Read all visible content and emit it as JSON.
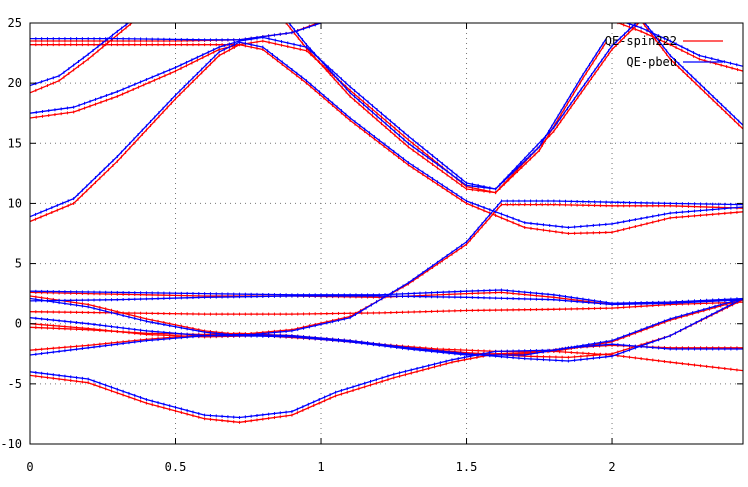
{
  "chart_data": {
    "type": "line",
    "xlim": [
      0,
      2.45
    ],
    "ylim": [
      -10,
      25
    ],
    "grid": true,
    "legend_position": "top-right",
    "x_ticks": [
      "0",
      "0.5",
      "1",
      "1.5",
      "2"
    ],
    "y_ticks": [
      "-10",
      "-5",
      "0",
      "5",
      "10",
      "15",
      "20",
      "25"
    ],
    "colors": {
      "red": "#ff0000",
      "blue": "#0000ff"
    },
    "series": [
      {
        "name": "QE-spin222",
        "color": "#ff0000",
        "bands": [
          {
            "x": [
              0,
              0.2,
              0.4,
              0.6,
              0.72,
              0.9,
              1.05
            ],
            "y": [
              -4.3,
              -4.9,
              -6.6,
              -7.9,
              -8.2,
              -7.6,
              -6.0
            ]
          },
          {
            "x": [
              1.05,
              1.25,
              1.45,
              1.6,
              1.8,
              2.0,
              2.2,
              2.45
            ],
            "y": [
              -6.0,
              -4.5,
              -3.2,
              -2.5,
              -2.3,
              -1.5,
              0.3,
              2.0
            ]
          },
          {
            "x": [
              0,
              0.2,
              0.4,
              0.6,
              0.72,
              0.9,
              1.1,
              1.3,
              1.5,
              1.7,
              1.85,
              2.0,
              2.2,
              2.45
            ],
            "y": [
              -2.2,
              -1.8,
              -1.3,
              -0.9,
              -0.8,
              -1.0,
              -1.5,
              -2.0,
              -2.4,
              -2.7,
              -2.8,
              -2.5,
              -1.0,
              2.0
            ]
          },
          {
            "x": [
              0,
              0.2,
              0.4,
              0.6,
              0.72,
              0.9,
              1.1,
              1.3,
              1.5,
              1.7,
              1.85,
              2.0,
              2.2,
              2.45
            ],
            "y": [
              -0.3,
              -0.5,
              -0.8,
              -0.9,
              -0.9,
              -1.0,
              -1.4,
              -2.0,
              -2.5,
              -2.5,
              -2.0,
              -1.8,
              -2.0,
              -2.0
            ]
          },
          {
            "x": [
              0,
              0.2,
              0.4,
              0.6,
              0.8,
              1.0,
              1.2,
              1.4,
              1.6,
              1.8,
              2.0,
              2.2,
              2.45
            ],
            "y": [
              0.0,
              -0.4,
              -0.9,
              -1.1,
              -1.0,
              -1.3,
              -1.7,
              -2.1,
              -2.3,
              -2.3,
              -2.6,
              -3.2,
              -3.9
            ]
          },
          {
            "x": [
              0,
              0.2,
              0.4,
              0.6,
              0.72,
              0.9,
              1.1,
              1.3,
              1.5,
              1.62,
              1.8,
              2.0,
              2.2,
              2.45
            ],
            "y": [
              2.3,
              1.6,
              0.4,
              -0.6,
              -0.9,
              -0.5,
              0.6,
              3.3,
              6.6,
              9.9,
              9.9,
              9.8,
              9.8,
              9.6
            ]
          },
          {
            "x": [
              0,
              0.3,
              0.6,
              0.9,
              1.2,
              1.5,
              1.8,
              2.0,
              2.2,
              2.45
            ],
            "y": [
              1.0,
              0.9,
              0.8,
              0.8,
              0.9,
              1.1,
              1.2,
              1.3,
              1.6,
              1.8
            ]
          },
          {
            "x": [
              0,
              0.2,
              0.4,
              0.6,
              0.9,
              1.2,
              1.5,
              1.62,
              1.8,
              2.0,
              2.2,
              2.45
            ],
            "y": [
              2.6,
              2.5,
              2.4,
              2.3,
              2.3,
              2.2,
              2.5,
              2.6,
              2.2,
              1.6,
              1.8,
              2.0
            ]
          },
          {
            "x": [
              0,
              0.15,
              0.3,
              0.5,
              0.65,
              0.72,
              0.8,
              0.95,
              1.1,
              1.3,
              1.5,
              1.7,
              1.85,
              2.0,
              2.2,
              2.45
            ],
            "y": [
              8.5,
              10.0,
              13.5,
              18.7,
              22.3,
              23.2,
              22.8,
              20.0,
              16.9,
              13.2,
              10.0,
              8.0,
              7.5,
              7.6,
              8.8,
              9.3
            ]
          },
          {
            "x": [
              0,
              0.15,
              0.3,
              0.5,
              0.65,
              0.72,
              0.8,
              0.95,
              1.1,
              1.3,
              1.5,
              1.6,
              1.8,
              2.0,
              2.1,
              2.2,
              2.45
            ],
            "y": [
              17.1,
              17.6,
              18.9,
              21.0,
              22.8,
              23.2,
              23.5,
              22.7,
              19.4,
              15.3,
              11.4,
              10.9,
              16.0,
              22.8,
              25.2,
              22.0,
              16.2
            ]
          },
          {
            "x": [
              0,
              0.1,
              0.2,
              0.3,
              0.36
            ],
            "y": [
              19.2,
              20.2,
              22.0,
              24.0,
              25.2
            ]
          },
          {
            "x": [
              0.88,
              0.95,
              1.1,
              1.3,
              1.5,
              1.6,
              1.75,
              1.9,
              1.98
            ],
            "y": [
              25.0,
              22.9,
              18.9,
              14.7,
              11.2,
              10.9,
              14.4,
              20.4,
              23.4
            ]
          },
          {
            "x": [
              0,
              0.3,
              0.6,
              0.72
            ],
            "y": [
              23.2,
              23.2,
              23.2,
              23.2
            ]
          },
          {
            "x": [
              0,
              0.3,
              0.5,
              0.72,
              0.9,
              1.0
            ],
            "y": [
              23.5,
              23.5,
              23.5,
              23.6,
              24.2,
              25.1
            ]
          },
          {
            "x": [
              2.0,
              2.1,
              2.2,
              2.3,
              2.45
            ],
            "y": [
              25.2,
              24.3,
              23.2,
              22.0,
              21.0
            ]
          }
        ]
      },
      {
        "name": "QE-pbeu",
        "color": "#0000ff",
        "bands": [
          {
            "x": [
              0,
              0.2,
              0.4,
              0.6,
              0.72,
              0.9,
              1.05
            ],
            "y": [
              -4.0,
              -4.6,
              -6.3,
              -7.6,
              -7.8,
              -7.3,
              -5.7
            ]
          },
          {
            "x": [
              1.05,
              1.25,
              1.45,
              1.6,
              1.8,
              2.0,
              2.2,
              2.45
            ],
            "y": [
              -5.7,
              -4.2,
              -3.0,
              -2.3,
              -2.2,
              -1.4,
              0.4,
              2.1
            ]
          },
          {
            "x": [
              0,
              0.2,
              0.4,
              0.6,
              0.72,
              0.9,
              1.1,
              1.3,
              1.5,
              1.7,
              1.85,
              2.0,
              2.2,
              2.45
            ],
            "y": [
              -2.6,
              -2.0,
              -1.4,
              -1.0,
              -0.9,
              -1.0,
              -1.4,
              -2.0,
              -2.5,
              -2.9,
              -3.1,
              -2.7,
              -1.0,
              2.1
            ]
          },
          {
            "x": [
              0,
              0.2,
              0.4,
              0.6,
              0.72,
              0.9,
              1.1,
              1.3,
              1.5,
              1.7,
              1.85,
              2.0,
              2.2,
              2.45
            ],
            "y": [
              0.5,
              0.0,
              -0.6,
              -1.0,
              -1.0,
              -1.1,
              -1.5,
              -2.1,
              -2.6,
              -2.6,
              -2.0,
              -1.7,
              -2.1,
              -2.1
            ]
          },
          {
            "x": [
              0,
              0.2,
              0.4,
              0.6,
              0.72,
              0.9,
              1.1,
              1.3,
              1.5,
              1.62,
              1.8,
              2.0,
              2.2,
              2.45
            ],
            "y": [
              2.1,
              1.4,
              0.2,
              -0.7,
              -1.0,
              -0.6,
              0.5,
              3.4,
              6.8,
              10.2,
              10.2,
              10.1,
              10.0,
              9.9
            ]
          },
          {
            "x": [
              0,
              0.3,
              0.6,
              0.9,
              1.2,
              1.5,
              1.62,
              1.8,
              2.0,
              2.2,
              2.45
            ],
            "y": [
              2.7,
              2.6,
              2.5,
              2.4,
              2.4,
              2.7,
              2.8,
              2.4,
              1.7,
              1.8,
              2.1
            ]
          },
          {
            "x": [
              0,
              0.3,
              0.6,
              0.9,
              1.2,
              1.5,
              1.8,
              2.0,
              2.2,
              2.45
            ],
            "y": [
              1.9,
              2.0,
              2.2,
              2.3,
              2.3,
              2.2,
              2.0,
              1.6,
              1.7,
              2.0
            ]
          },
          {
            "x": [
              0,
              0.15,
              0.3,
              0.5,
              0.65,
              0.72,
              0.8,
              0.95,
              1.1,
              1.3,
              1.5,
              1.7,
              1.85,
              2.0,
              2.2,
              2.45
            ],
            "y": [
              8.9,
              10.4,
              13.9,
              19.0,
              22.6,
              23.4,
              23.0,
              20.2,
              17.1,
              13.4,
              10.2,
              8.4,
              8.0,
              8.3,
              9.2,
              9.7
            ]
          },
          {
            "x": [
              0,
              0.15,
              0.3,
              0.5,
              0.65,
              0.72,
              0.8,
              0.95,
              1.1,
              1.3,
              1.5,
              1.6,
              1.8,
              2.0,
              2.1,
              2.2,
              2.45
            ],
            "y": [
              17.5,
              18.0,
              19.3,
              21.3,
              23.0,
              23.5,
              23.8,
              23.0,
              19.7,
              15.6,
              11.7,
              11.2,
              16.3,
              23.1,
              25.4,
              22.3,
              16.5
            ]
          },
          {
            "x": [
              0,
              0.1,
              0.2,
              0.3,
              0.36
            ],
            "y": [
              19.8,
              20.6,
              22.4,
              24.3,
              25.4
            ]
          },
          {
            "x": [
              0.88,
              0.95,
              1.1,
              1.3,
              1.5,
              1.6,
              1.75,
              1.9,
              1.98
            ],
            "y": [
              25.3,
              23.2,
              19.2,
              15.0,
              11.5,
              11.2,
              14.7,
              20.7,
              23.7
            ]
          },
          {
            "x": [
              0,
              0.3,
              0.6,
              0.72,
              0.9,
              1.0
            ],
            "y": [
              23.7,
              23.7,
              23.6,
              23.6,
              24.2,
              25.0
            ]
          },
          {
            "x": [
              2.0,
              2.1,
              2.2,
              2.3,
              2.45
            ],
            "y": [
              25.4,
              24.6,
              23.5,
              22.3,
              21.4
            ]
          }
        ]
      }
    ]
  }
}
